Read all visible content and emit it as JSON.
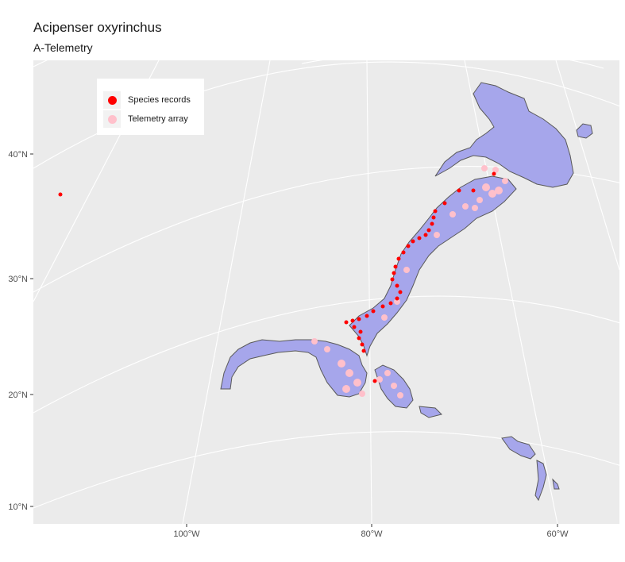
{
  "title": "Acipenser oxyrinchus",
  "subtitle": "A-Telemetry",
  "colors": {
    "panel_bg": "#ebebeb",
    "grid": "#ffffff",
    "land": "#a6a6eb",
    "coast": "#595959",
    "species": "#ff0000",
    "telemetry": "#ffc0cb"
  },
  "axes": {
    "y_ticks": [
      "40°N",
      "30°N",
      "20°N",
      "10°N"
    ],
    "x_ticks": [
      "100°W",
      "80°W",
      "60°W"
    ]
  },
  "legend": {
    "items": [
      {
        "label": "Species records",
        "color": "#ff0000"
      },
      {
        "label": "Telemetry array",
        "color": "#ffc0cb"
      }
    ]
  }
}
